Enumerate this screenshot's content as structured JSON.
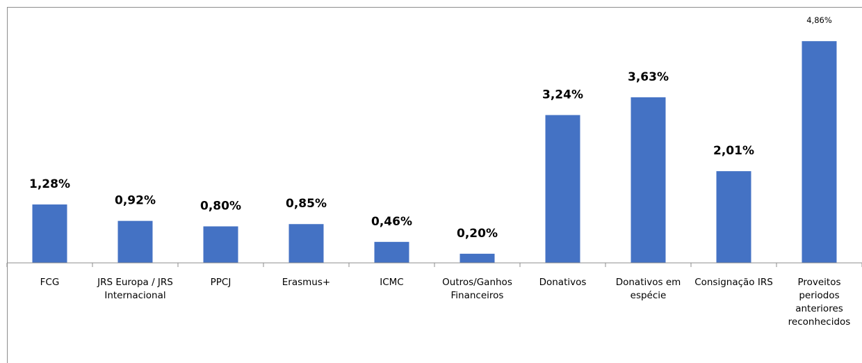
{
  "chart_data": {
    "type": "bar",
    "categories": [
      "FCG",
      "JRS Europa / JRS Internacional",
      "PPCJ",
      "Erasmus+",
      "ICMC",
      "Outros/Ganhos Financeiros",
      "Donativos",
      "Donativos em espécie",
      "Consignação IRS",
      "Proveitos periodos anteriores reconhecidos"
    ],
    "category_lines": [
      [
        "FCG"
      ],
      [
        "JRS Europa / JRS",
        "Internacional"
      ],
      [
        "PPCJ"
      ],
      [
        "Erasmus+"
      ],
      [
        "ICMC"
      ],
      [
        "Outros/Ganhos",
        "Financeiros"
      ],
      [
        "Donativos"
      ],
      [
        "Donativos em",
        "espécie"
      ],
      [
        "Consignação IRS"
      ],
      [
        "Proveitos",
        "periodos",
        "anteriores",
        "reconhecidos"
      ]
    ],
    "values": [
      1.28,
      0.92,
      0.8,
      0.85,
      0.46,
      0.2,
      3.24,
      3.63,
      2.01,
      4.86
    ],
    "data_labels": [
      "1,28%",
      "0,92%",
      "0,80%",
      "0,85%",
      "0,46%",
      "0,20%",
      "3,24%",
      "3,63%",
      "2,01%",
      "4,86%"
    ],
    "data_label_bold": [
      true,
      true,
      true,
      true,
      true,
      true,
      true,
      true,
      true,
      false
    ],
    "bar_color": "#4472C4",
    "axis_color": "#8c8c8c",
    "ylim": [
      0,
      5
    ],
    "title": "",
    "xlabel": "",
    "ylabel": "",
    "grid": false,
    "legend": false
  }
}
